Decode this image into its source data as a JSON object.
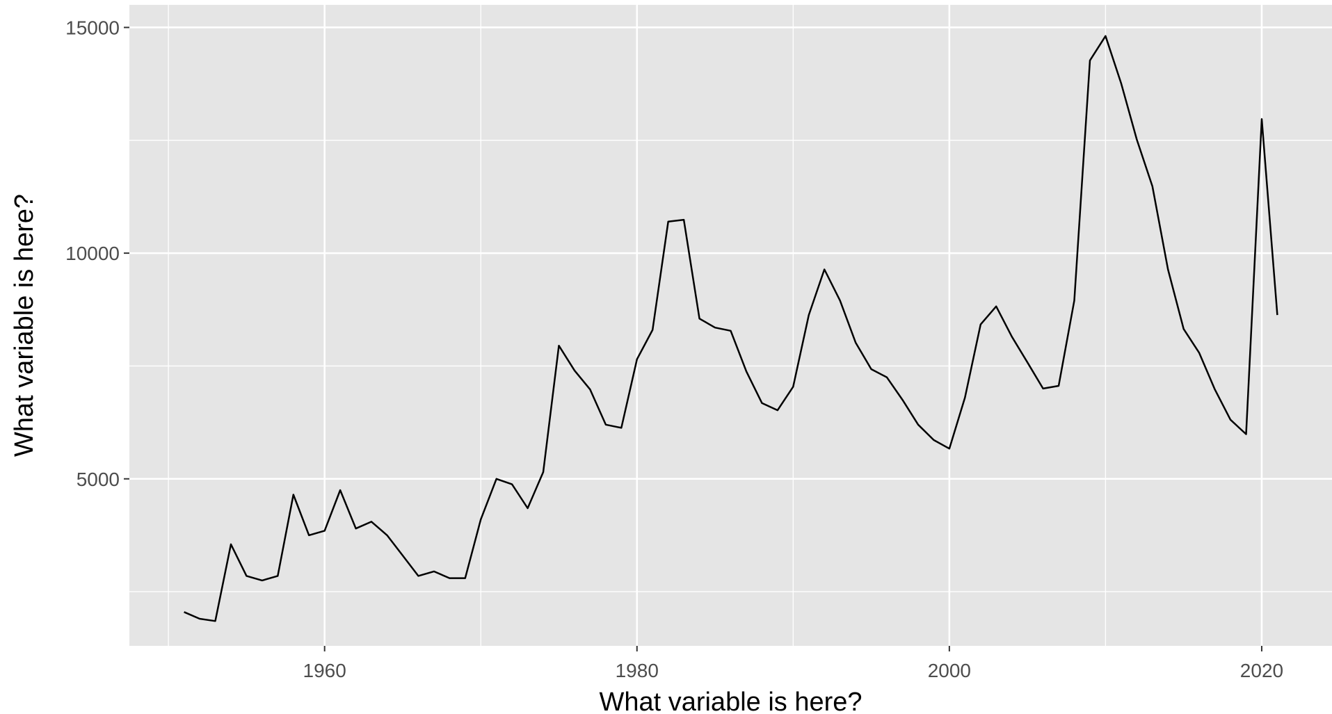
{
  "chart_data": {
    "type": "line",
    "title": "",
    "xlabel": "What variable is here?",
    "ylabel": "What variable is here?",
    "xlim": [
      1947.5,
      2024.5
    ],
    "ylim": [
      1300,
      15500
    ],
    "x_ticks": [
      1960,
      1980,
      2000,
      2020
    ],
    "y_ticks": [
      5000,
      10000,
      15000
    ],
    "x_tick_labels": [
      "1960",
      "1980",
      "2000",
      "2020"
    ],
    "y_tick_labels": [
      "5000",
      "10000",
      "15000"
    ],
    "grid": true,
    "colors": {
      "panel": "#e5e5e5",
      "grid": "#ffffff",
      "line": "#000000",
      "tick_text": "#4d4d4d"
    },
    "series": [
      {
        "x": [
          1951,
          1952,
          1953,
          1954,
          1955,
          1956,
          1957,
          1958,
          1959,
          1960,
          1961,
          1962,
          1963,
          1964,
          1965,
          1966,
          1967,
          1968,
          1969,
          1970,
          1971,
          1972,
          1973,
          1974,
          1975,
          1976,
          1977,
          1978,
          1979,
          1980,
          1981,
          1982,
          1983,
          1984,
          1985,
          1986,
          1987,
          1988,
          1989,
          1990,
          1991,
          1992,
          1993,
          1994,
          1995,
          1996,
          1997,
          1998,
          1999,
          2000,
          2001,
          2002,
          2003,
          2004,
          2005,
          2006,
          2007,
          2008,
          2009,
          2010,
          2011,
          2012,
          2013,
          2014,
          2015,
          2016,
          2017,
          2018,
          2019,
          2020,
          2021
        ],
        "values": [
          2050,
          1900,
          1850,
          3550,
          2850,
          2750,
          2850,
          4650,
          3750,
          3850,
          4750,
          3900,
          4050,
          3750,
          3300,
          2850,
          2950,
          2800,
          2800,
          4100,
          5000,
          4880,
          4350,
          5150,
          7950,
          7400,
          6980,
          6200,
          6130,
          7650,
          8300,
          10700,
          10740,
          8550,
          8350,
          8280,
          7380,
          6680,
          6520,
          7040,
          8630,
          9640,
          8950,
          8020,
          7430,
          7250,
          6750,
          6200,
          5860,
          5670,
          6800,
          8420,
          8820,
          8150,
          7580,
          7000,
          7060,
          8950,
          14270,
          14810,
          13760,
          12520,
          11480,
          9640,
          8320,
          7790,
          6980,
          6310,
          5990,
          12970,
          8630
        ]
      }
    ]
  }
}
